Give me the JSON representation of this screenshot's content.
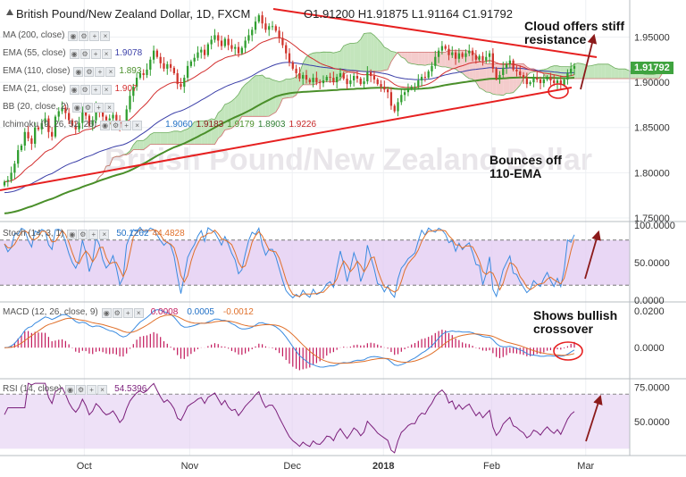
{
  "header": {
    "symbol": "British Pound/New Zealand Dollar, 1D, FXCM",
    "ohlc": "O1.91200  H1.91875  L1.91164  C1.91792"
  },
  "colors": {
    "up": "#2f9e2f",
    "down": "#d0342c",
    "ema21": "#d32f2f",
    "ema55": "#3b3fa8",
    "ema110": "#4a8f2a",
    "cloud_bull": "#b9e0b0",
    "cloud_bear": "#f2c3c3",
    "trend": "#e62020",
    "stoch_k": "#3a8be0",
    "stoch_d": "#e0702a",
    "macd": "#3a8be0",
    "signal": "#e0702a",
    "hist": "#c2185b",
    "rsi": "#7b1f7b",
    "band": "#e3cdf2",
    "price_box": "#3fa33f"
  },
  "legends": {
    "ma200": {
      "label": "MA (200, close)",
      "value": ""
    },
    "ema55": {
      "label": "EMA (55, close)",
      "value": "1.9078"
    },
    "ema110": {
      "label": "EMA (110, close)",
      "value": "1.893"
    },
    "ema21": {
      "label": "EMA (21, close)",
      "value": "1.907"
    },
    "bb": {
      "label": "BB (20, close, 2)",
      "value": ""
    },
    "ichimoku": {
      "label": "Ichimoku (9, 26, 52, 26)",
      "values": [
        "1.9060",
        "1.9183",
        "1.9179",
        "1.8903",
        "1.9226"
      ]
    },
    "stoch": {
      "label": "Stoch (14, 3, 1)",
      "values": [
        "50.1262",
        "44.4828"
      ]
    },
    "macd": {
      "label": "MACD (12, 26, close, 9)",
      "values": [
        "0.0008",
        "0.0005",
        "-0.0012"
      ]
    },
    "rsi": {
      "label": "RSI (14, close)",
      "value": "54.5396"
    }
  },
  "annotations": {
    "cloud": [
      "Cloud offers stiff",
      "resistance"
    ],
    "bounce": [
      "Bounces off",
      "110-EMA"
    ],
    "crossover": [
      "Shows bullish",
      "crossover"
    ]
  },
  "watermark": "British Pound/New Zealand Dollar",
  "chart_data": [
    {
      "type": "candlestick",
      "panel": "price",
      "last_price": "1.91792",
      "x_tick_labels": [
        "Oct",
        "Nov",
        "Dec",
        "2018",
        "Feb",
        "Mar"
      ],
      "y_tick_labels": [
        "1.95000",
        "1.90000",
        "1.85000",
        "1.80000",
        "1.75000"
      ],
      "ylim": [
        1.75,
        1.985
      ],
      "close": [
        1.79,
        1.792,
        1.8,
        1.81,
        1.825,
        1.83,
        1.845,
        1.838,
        1.832,
        1.85,
        1.848,
        1.855,
        1.86,
        1.845,
        1.84,
        1.862,
        1.868,
        1.872,
        1.866,
        1.858,
        1.852,
        1.848,
        1.855,
        1.87,
        1.863,
        1.852,
        1.858,
        1.872,
        1.868,
        1.862,
        1.858,
        1.86,
        1.864,
        1.858,
        1.85,
        1.855,
        1.87,
        1.885,
        1.895,
        1.905,
        1.91,
        1.908,
        1.914,
        1.925,
        1.935,
        1.928,
        1.921,
        1.915,
        1.92,
        1.916,
        1.91,
        1.898,
        1.895,
        1.905,
        1.918,
        1.923,
        1.927,
        1.933,
        1.936,
        1.93,
        1.942,
        1.947,
        1.952,
        1.946,
        1.94,
        1.948,
        1.941,
        1.937,
        1.939,
        1.932,
        1.938,
        1.946,
        1.952,
        1.958,
        1.967,
        1.974,
        1.965,
        1.958,
        1.962,
        1.962,
        1.957,
        1.949,
        1.941,
        1.932,
        1.922,
        1.915,
        1.91,
        1.904,
        1.908,
        1.903,
        1.9,
        1.905,
        1.9,
        1.899,
        1.902,
        1.906,
        1.905,
        1.9,
        1.906,
        1.91,
        1.904,
        1.898,
        1.902,
        1.907,
        1.904,
        1.898,
        1.901,
        1.911,
        1.907,
        1.903,
        1.898,
        1.895,
        1.892,
        1.889,
        1.874,
        1.868,
        1.878,
        1.886,
        1.889,
        1.893,
        1.895,
        1.895,
        1.902,
        1.906,
        1.905,
        1.912,
        1.918,
        1.928,
        1.935,
        1.94,
        1.937,
        1.93,
        1.933,
        1.926,
        1.932,
        1.928,
        1.932,
        1.935,
        1.93,
        1.925,
        1.929,
        1.924,
        1.928,
        1.932,
        1.915,
        1.904,
        1.908,
        1.916,
        1.92,
        1.924,
        1.914,
        1.912,
        1.908,
        1.905,
        1.898,
        1.9,
        1.905,
        1.903,
        1.899,
        1.903,
        1.906,
        1.902,
        1.899,
        1.902,
        1.897,
        1.903,
        1.91,
        1.915,
        1.918
      ]
    },
    {
      "type": "line",
      "panel": "stochastic",
      "series": [
        {
          "name": "Stoch %K"
        },
        {
          "name": "Stoch %D"
        }
      ],
      "y_tick_labels": [
        "100.0000",
        "50.0000",
        "0.0000"
      ],
      "ylim": [
        0,
        100
      ]
    },
    {
      "type": "line",
      "panel": "macd",
      "series": [
        {
          "name": "MACD"
        },
        {
          "name": "Signal"
        },
        {
          "name": "Histogram"
        }
      ],
      "y_tick_labels": [
        "0.0200",
        "0.0000"
      ],
      "ylim": [
        -0.016,
        0.024
      ]
    },
    {
      "type": "line",
      "panel": "rsi",
      "series": [
        {
          "name": "RSI"
        }
      ],
      "y_tick_labels": [
        "75.0000",
        "50.0000"
      ],
      "ylim": [
        25,
        80
      ]
    }
  ]
}
